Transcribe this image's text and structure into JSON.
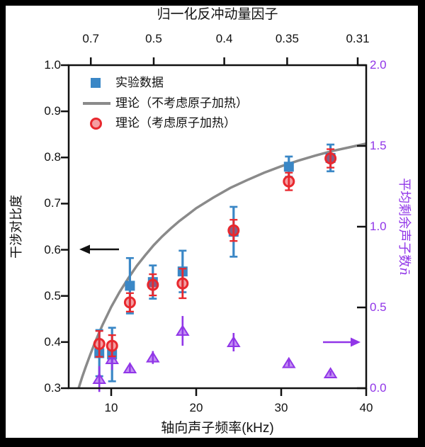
{
  "figure": {
    "top_axis": {
      "title": "归一化反冲动量因子",
      "ticks": [
        {
          "label": "0.7",
          "f": 7.6
        },
        {
          "label": "0.5",
          "f": 15.0
        },
        {
          "label": "0.4",
          "f": 23.3
        },
        {
          "label": "0.35",
          "f": 30.7
        },
        {
          "label": "0.31",
          "f": 39.0
        }
      ]
    },
    "x_axis": {
      "label": "轴向声子频率(kHz)",
      "ticks": [
        {
          "label": "10",
          "f": 10
        },
        {
          "label": "20",
          "f": 20
        },
        {
          "label": "30",
          "f": 30
        },
        {
          "label": "40",
          "f": 40
        }
      ]
    },
    "y_left_axis": {
      "label": "干涉对比度",
      "ticks": [
        {
          "label": "1.0",
          "v": 1.0
        },
        {
          "label": "0.9",
          "v": 0.9
        },
        {
          "label": "0.8",
          "v": 0.8
        },
        {
          "label": "0.7",
          "v": 0.7
        },
        {
          "label": "0.6",
          "v": 0.6
        },
        {
          "label": "0.5",
          "v": 0.5
        },
        {
          "label": "0.4",
          "v": 0.4
        },
        {
          "label": "0.3",
          "v": 0.3
        }
      ]
    },
    "y_right_axis": {
      "label": "平均剩余声子数",
      "symbol": "n̄",
      "color": "#9136e8",
      "ticks": [
        {
          "label": "2.0",
          "v": 2.0
        },
        {
          "label": "1.5",
          "v": 1.5
        },
        {
          "label": "1.0",
          "v": 1.0
        },
        {
          "label": "0.5",
          "v": 0.5
        },
        {
          "label": "0.0",
          "v": 0.0
        }
      ]
    },
    "legend": {
      "items": [
        {
          "marker": "square",
          "label": "实验数据"
        },
        {
          "marker": "line",
          "label": "理论（不考虑原子加热）"
        },
        {
          "marker": "circle",
          "label": "理论（考虑原子加热）"
        }
      ]
    },
    "annotations": [
      {
        "type": "arrow",
        "direction": "left",
        "color": "#111111",
        "meaning": "points-to-left-axis"
      },
      {
        "type": "arrow",
        "direction": "right",
        "color": "#9136e8",
        "meaning": "points-to-right-axis"
      }
    ]
  },
  "chart_data": {
    "type": "scatter",
    "title": "",
    "xlabel": "轴向声子频率(kHz)",
    "ylabel_left": "干涉对比度",
    "ylabel_right": "平均剩余声子数n̄",
    "x_range": [
      5,
      40
    ],
    "y_left_range": [
      0.3,
      1.0
    ],
    "y_right_range": [
      0.0,
      2.0
    ],
    "top_axis_scale": "0.7·sqrt(7.6/f)",
    "grid": false,
    "legend_position": "upper-left-inside",
    "x": [
      8.6,
      10.1,
      12.2,
      14.9,
      18.4,
      24.4,
      30.9,
      35.8
    ],
    "series": [
      {
        "name": "实验数据",
        "marker": "square",
        "color": "#3a87c6",
        "axis": "left",
        "y": [
          0.376,
          0.373,
          0.522,
          0.53,
          0.553,
          0.639,
          0.78,
          0.799
        ],
        "yerr": [
          0.05,
          0.058,
          0.06,
          0.036,
          0.045,
          0.054,
          0.022,
          0.029
        ]
      },
      {
        "name": "理论（考虑原子加热）",
        "marker": "circle",
        "color": "#e8282e",
        "axis": "left",
        "y": [
          0.396,
          0.392,
          0.486,
          0.524,
          0.527,
          0.642,
          0.748,
          0.798
        ],
        "yerr": [
          0.028,
          0.023,
          0.02,
          0.023,
          0.032,
          0.023,
          0.019,
          0.02
        ]
      },
      {
        "name": "平均剩余声子数",
        "marker": "triangle",
        "color": "#9136e8",
        "axis": "right",
        "y": [
          0.057,
          0.18,
          0.123,
          0.19,
          0.355,
          0.285,
          0.155,
          0.092
        ],
        "yerr": [
          0.08,
          0.067,
          0.03,
          0.04,
          0.092,
          0.057,
          0.02,
          0.015
        ]
      },
      {
        "name": "理论（不考虑原子加热）",
        "marker": "none",
        "type": "line",
        "color": "#8a8a8a",
        "axis": "left",
        "points": [
          [
            6.17,
            0.3
          ],
          [
            6.6,
            0.325
          ],
          [
            7,
            0.346
          ],
          [
            7.5,
            0.371
          ],
          [
            8,
            0.395
          ],
          [
            8.5,
            0.417
          ],
          [
            9,
            0.438
          ],
          [
            9.5,
            0.457
          ],
          [
            10,
            0.476
          ],
          [
            11,
            0.509
          ],
          [
            12,
            0.538
          ],
          [
            13,
            0.565
          ],
          [
            14,
            0.588
          ],
          [
            15,
            0.61
          ],
          [
            16,
            0.629
          ],
          [
            17,
            0.646
          ],
          [
            18,
            0.662
          ],
          [
            19,
            0.676
          ],
          [
            20,
            0.69
          ],
          [
            22,
            0.713
          ],
          [
            24,
            0.734
          ],
          [
            26,
            0.751
          ],
          [
            28,
            0.767
          ],
          [
            30,
            0.781
          ],
          [
            32,
            0.793
          ],
          [
            34,
            0.804
          ],
          [
            36,
            0.814
          ],
          [
            38,
            0.822
          ],
          [
            40,
            0.83
          ]
        ]
      }
    ]
  }
}
